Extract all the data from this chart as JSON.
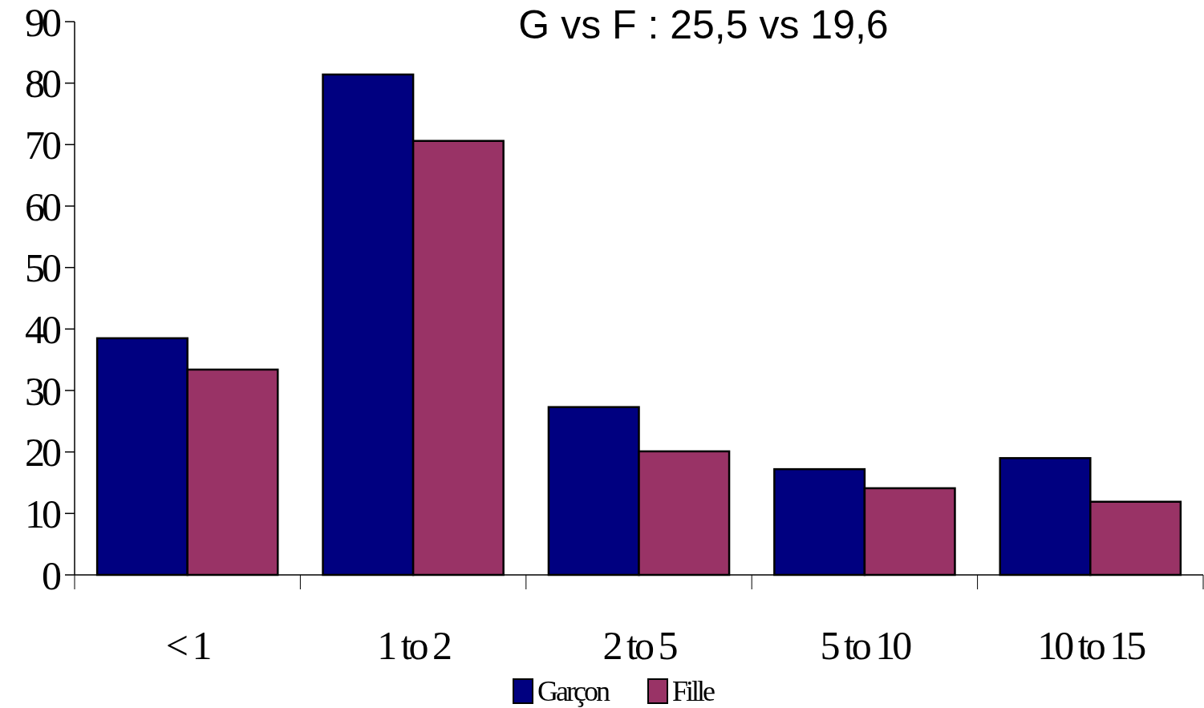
{
  "chart_data": {
    "type": "bar",
    "title": "G vs F : 25,5 vs 19,6",
    "categories": [
      "< 1",
      "1 to 2",
      "2 to 5",
      "5 to 10",
      "10 to 15"
    ],
    "series": [
      {
        "name": "Garçon",
        "color": "#000080",
        "values": [
          38.5,
          81.4,
          27.3,
          17.2,
          19.0
        ]
      },
      {
        "name": "Fille",
        "color": "#993366",
        "values": [
          33.4,
          70.6,
          20.1,
          14.1,
          11.9
        ]
      }
    ],
    "ylim": [
      0,
      90
    ],
    "yticks": [
      0,
      10,
      20,
      30,
      40,
      50,
      60,
      70,
      80,
      90
    ],
    "grid": false,
    "legend": "bottom"
  }
}
